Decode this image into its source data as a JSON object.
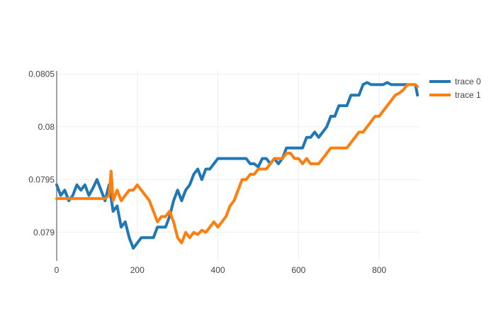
{
  "chart_data": {
    "type": "line",
    "title": "",
    "xlabel": "",
    "ylabel": "",
    "xlim": [
      0,
      900
    ],
    "ylim": [
      0.07873,
      0.08053
    ],
    "x_ticks": [
      0,
      200,
      400,
      600,
      800
    ],
    "x_tick_labels": [
      "0",
      "200",
      "400",
      "600",
      "800"
    ],
    "y_ticks": [
      0.079,
      0.0795,
      0.08,
      0.0805
    ],
    "y_tick_labels": [
      "0.079",
      "0.0795",
      "0.08",
      "0.0805"
    ],
    "grid": true,
    "legend_position": "top-right",
    "series": [
      {
        "name": "trace 0",
        "color": "#1f77b4",
        "x": [
          0,
          10,
          20,
          30,
          40,
          50,
          60,
          70,
          80,
          90,
          100,
          110,
          120,
          130,
          140,
          150,
          160,
          170,
          180,
          190,
          200,
          210,
          220,
          230,
          240,
          250,
          260,
          270,
          280,
          290,
          300,
          310,
          320,
          330,
          340,
          350,
          360,
          370,
          380,
          390,
          400,
          410,
          420,
          430,
          440,
          450,
          460,
          470,
          480,
          490,
          500,
          510,
          520,
          530,
          540,
          550,
          560,
          570,
          580,
          590,
          600,
          610,
          620,
          630,
          640,
          650,
          660,
          670,
          680,
          690,
          700,
          710,
          720,
          730,
          740,
          750,
          760,
          770,
          780,
          790,
          800,
          810,
          820,
          830,
          840,
          850,
          860,
          870,
          880,
          890,
          895
        ],
        "values": [
          0.07945,
          0.07935,
          0.0794,
          0.0793,
          0.07935,
          0.07945,
          0.0794,
          0.07945,
          0.07935,
          0.07942,
          0.0795,
          0.0794,
          0.0793,
          0.07945,
          0.0792,
          0.07925,
          0.07905,
          0.0791,
          0.07895,
          0.07885,
          0.0789,
          0.07895,
          0.07895,
          0.07895,
          0.07895,
          0.07905,
          0.07905,
          0.07905,
          0.07915,
          0.0793,
          0.0794,
          0.0793,
          0.0794,
          0.07945,
          0.07955,
          0.0796,
          0.0795,
          0.0796,
          0.0796,
          0.07965,
          0.0797,
          0.0797,
          0.0797,
          0.0797,
          0.0797,
          0.0797,
          0.0797,
          0.0797,
          0.07965,
          0.07965,
          0.07962,
          0.0797,
          0.0797,
          0.07965,
          0.0797,
          0.07965,
          0.0797,
          0.0798,
          0.0798,
          0.0798,
          0.0798,
          0.0798,
          0.0799,
          0.0799,
          0.07995,
          0.0799,
          0.07995,
          0.08,
          0.0801,
          0.0801,
          0.0802,
          0.0802,
          0.0802,
          0.0803,
          0.0803,
          0.0803,
          0.0804,
          0.08042,
          0.0804,
          0.0804,
          0.0804,
          0.0804,
          0.08042,
          0.0804,
          0.0804,
          0.0804,
          0.0804,
          0.0804,
          0.0804,
          0.0804,
          0.0803
        ]
      },
      {
        "name": "trace 1",
        "color": "#ff7f0e",
        "x": [
          0,
          20,
          40,
          60,
          80,
          100,
          120,
          130,
          135,
          140,
          150,
          160,
          170,
          180,
          190,
          200,
          210,
          220,
          230,
          240,
          250,
          260,
          270,
          280,
          290,
          300,
          310,
          320,
          330,
          340,
          350,
          360,
          370,
          380,
          390,
          400,
          410,
          420,
          430,
          440,
          450,
          460,
          470,
          480,
          490,
          500,
          510,
          520,
          530,
          540,
          550,
          560,
          570,
          580,
          590,
          600,
          610,
          620,
          630,
          640,
          650,
          660,
          670,
          680,
          690,
          700,
          710,
          720,
          730,
          740,
          750,
          760,
          770,
          780,
          790,
          800,
          810,
          820,
          830,
          840,
          850,
          860,
          870,
          880,
          890,
          895
        ],
        "values": [
          0.07932,
          0.07932,
          0.07932,
          0.07932,
          0.07932,
          0.07932,
          0.07932,
          0.07935,
          0.07958,
          0.0793,
          0.0794,
          0.0793,
          0.07935,
          0.0794,
          0.0794,
          0.07945,
          0.0794,
          0.07935,
          0.0793,
          0.0792,
          0.0791,
          0.07915,
          0.07915,
          0.0792,
          0.0791,
          0.07895,
          0.0789,
          0.079,
          0.07895,
          0.079,
          0.07898,
          0.07902,
          0.079,
          0.07905,
          0.0791,
          0.07905,
          0.0791,
          0.07915,
          0.07925,
          0.0793,
          0.0794,
          0.0795,
          0.0795,
          0.07955,
          0.07955,
          0.0796,
          0.0796,
          0.0796,
          0.07965,
          0.0797,
          0.0797,
          0.0797,
          0.07975,
          0.07975,
          0.0797,
          0.0797,
          0.07965,
          0.0797,
          0.07965,
          0.07965,
          0.07965,
          0.0797,
          0.07975,
          0.0798,
          0.0798,
          0.0798,
          0.0798,
          0.0798,
          0.07985,
          0.0799,
          0.07995,
          0.07995,
          0.08,
          0.08005,
          0.0801,
          0.0801,
          0.08015,
          0.0802,
          0.08025,
          0.0803,
          0.08032,
          0.08035,
          0.0804,
          0.0804,
          0.0804,
          0.08038
        ]
      }
    ]
  }
}
